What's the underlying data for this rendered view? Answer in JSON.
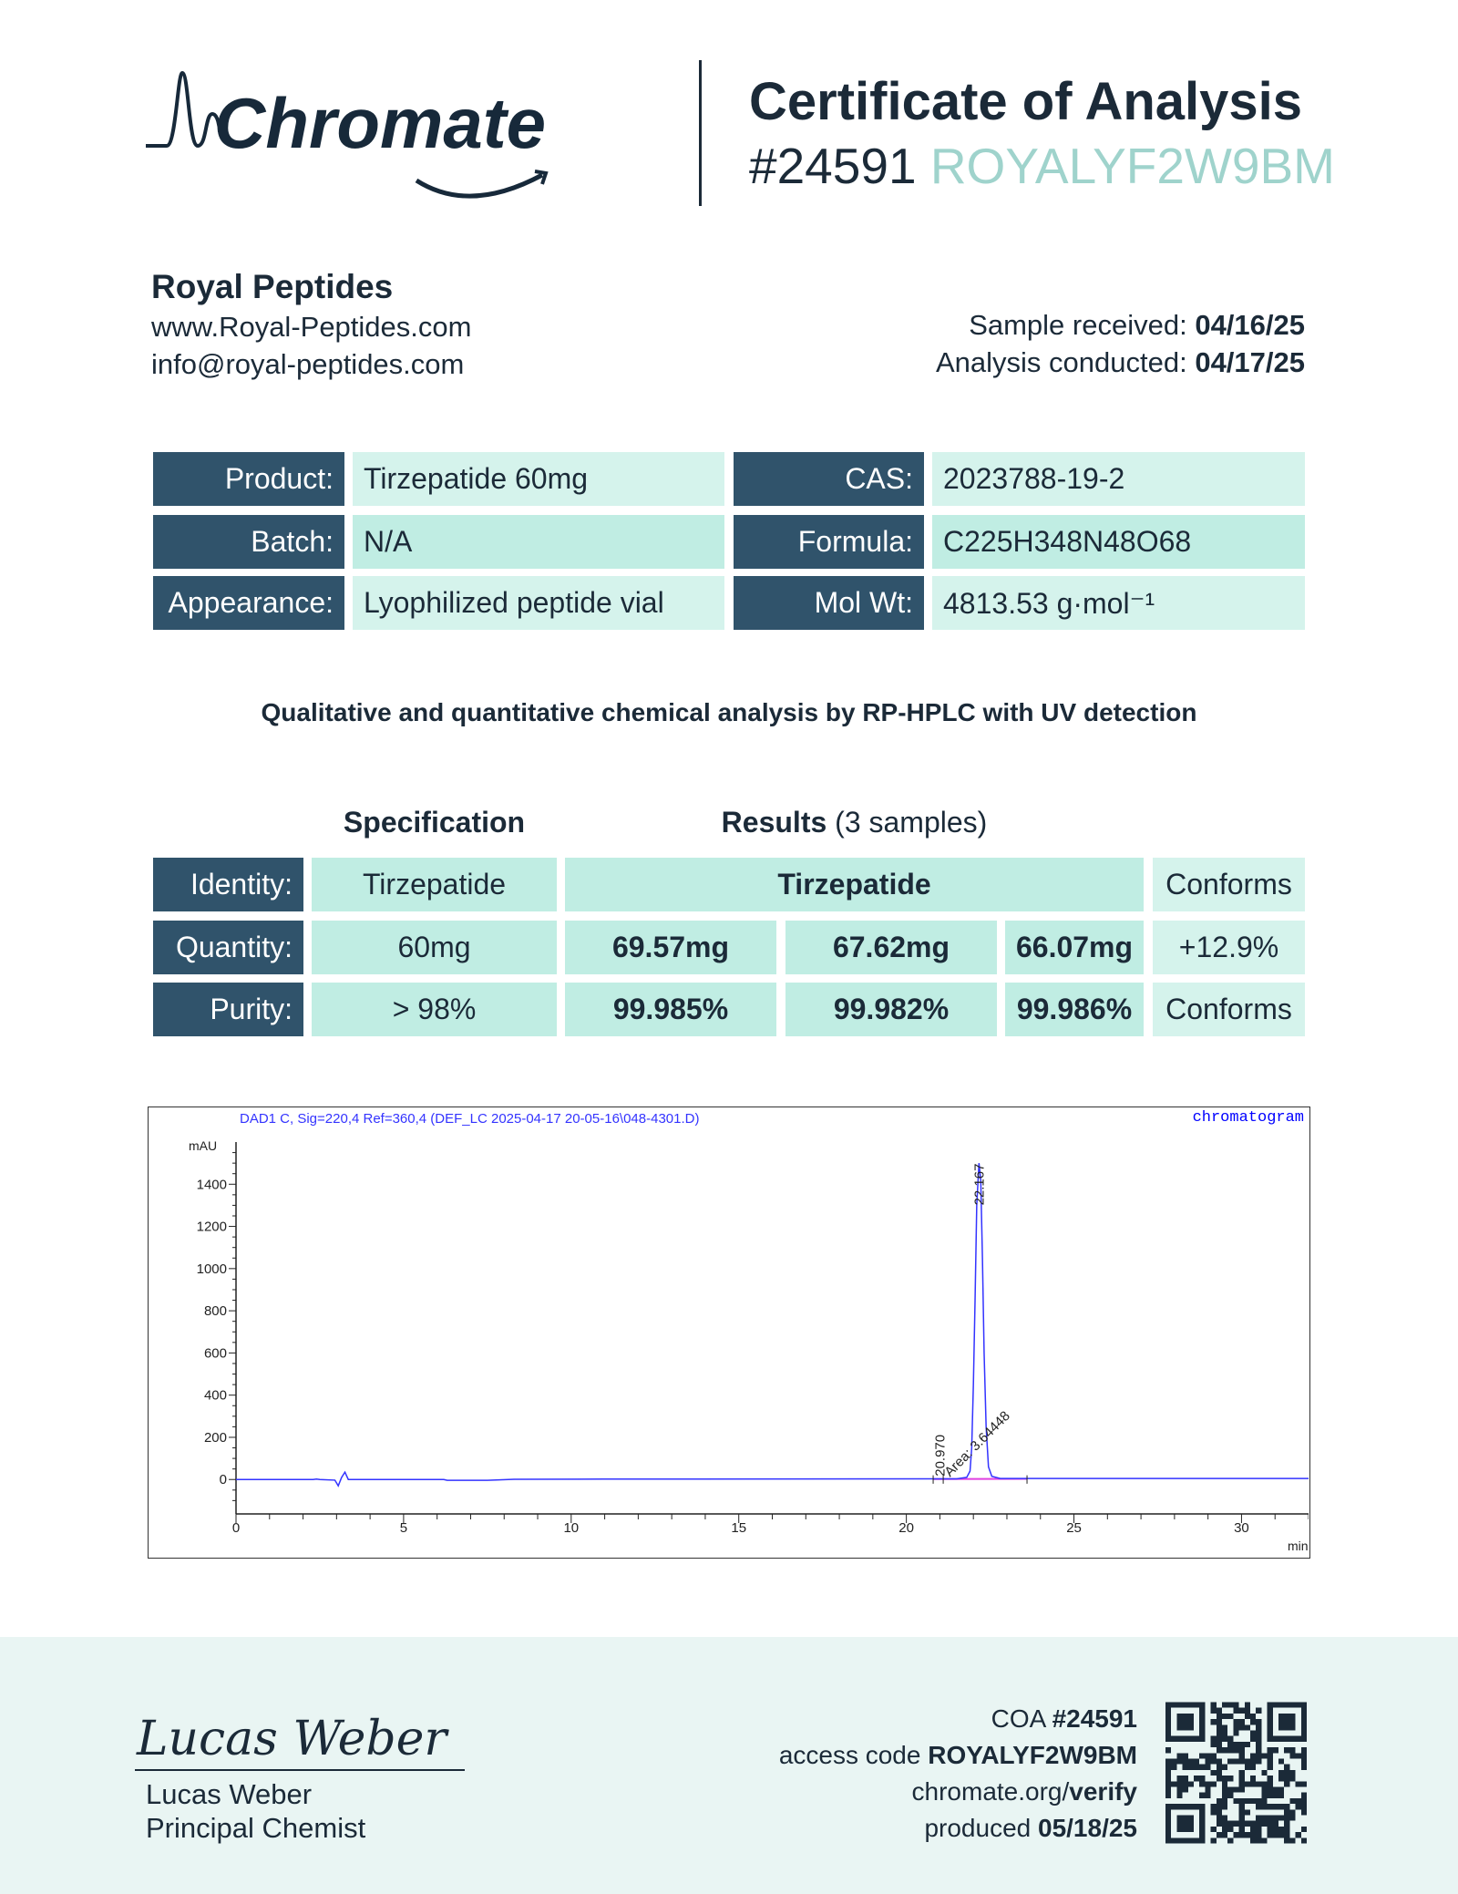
{
  "header": {
    "logo_text": "Chromate",
    "title": "Certificate of Analysis",
    "coa_number": "#24591",
    "access_code": "ROYALYF2W9BM"
  },
  "client": {
    "name": "Royal Peptides",
    "website": "www.Royal-Peptides.com",
    "email": "info@royal-peptides.com"
  },
  "dates": {
    "received_label": "Sample received:",
    "received": "04/16/25",
    "conducted_label": "Analysis conducted:",
    "conducted": "04/17/25"
  },
  "product_table": [
    {
      "label": "Product:",
      "value": "Tirzepatide 60mg",
      "label2": "CAS:",
      "value2": "2023788-19-2"
    },
    {
      "label": "Batch:",
      "value": "N/A",
      "label2": "Formula:",
      "value2": "C225H348N48O68"
    },
    {
      "label": "Appearance:",
      "value": "Lyophilized peptide vial",
      "label2": "Mol Wt:",
      "value2": "4813.53 g·mol⁻¹"
    }
  ],
  "method": "Qualitative and quantitative chemical analysis by RP-HPLC with UV detection",
  "results": {
    "spec_header": "Specification",
    "results_header": "Results",
    "samples_note": "(3 samples)",
    "identity": {
      "label": "Identity:",
      "spec": "Tirzepatide",
      "result": "Tirzepatide",
      "verdict": "Conforms"
    },
    "quantity": {
      "label": "Quantity:",
      "spec": "60mg",
      "values": [
        "69.57mg",
        "67.62mg",
        "66.07mg"
      ],
      "verdict": "+12.9%"
    },
    "purity": {
      "label": "Purity:",
      "spec": "> 98%",
      "values": [
        "99.985%",
        "99.982%",
        "99.986%"
      ],
      "verdict": "Conforms"
    }
  },
  "chart_data": {
    "type": "line",
    "title": "DAD1 C, Sig=220,4 Ref=360,4 (DEF_LC 2025-04-17 20-05-16\\048-4301.D)",
    "legend": "chromatogram",
    "legend_position": "top-right",
    "xlabel": "min",
    "ylabel": "mAU",
    "xlim": [
      0,
      32
    ],
    "ylim": [
      -120,
      1600
    ],
    "xticks": [
      0,
      5,
      10,
      15,
      20,
      25,
      30
    ],
    "yticks": [
      0,
      200,
      400,
      600,
      800,
      1000,
      1200,
      1400
    ],
    "grid": false,
    "line_color": "#3333ff",
    "baseline_color": "#e040e0",
    "annotations": [
      "22.167",
      "20.970",
      "Area: 3.64448"
    ],
    "series": [
      {
        "points": [
          [
            0,
            0
          ],
          [
            2.3,
            0
          ],
          [
            2.4,
            2
          ],
          [
            2.5,
            0
          ],
          [
            2.95,
            -3
          ],
          [
            3.05,
            -30
          ],
          [
            3.15,
            10
          ],
          [
            3.25,
            35
          ],
          [
            3.35,
            0
          ],
          [
            6.2,
            0
          ],
          [
            6.3,
            -4
          ],
          [
            7.5,
            -4
          ],
          [
            8.3,
            1
          ],
          [
            11,
            2
          ],
          [
            21.5,
            3
          ],
          [
            21.8,
            10
          ],
          [
            21.9,
            40
          ],
          [
            21.95,
            150
          ],
          [
            22.0,
            450
          ],
          [
            22.05,
            850
          ],
          [
            22.1,
            1300
          ],
          [
            22.167,
            1500
          ],
          [
            22.22,
            1420
          ],
          [
            22.27,
            1050
          ],
          [
            22.32,
            600
          ],
          [
            22.38,
            250
          ],
          [
            22.45,
            60
          ],
          [
            22.55,
            15
          ],
          [
            22.8,
            5
          ],
          [
            32,
            5
          ]
        ]
      }
    ]
  },
  "signature": {
    "name": "Lucas Weber",
    "title": "Principal Chemist",
    "script": "Lucas Weber"
  },
  "footer": {
    "coa_label": "COA",
    "coa": "#24591",
    "access_label": "access code",
    "access": "ROYALYF2W9BM",
    "verify_domain": "chromate.org/",
    "verify_path": "verify",
    "produced_label": "produced",
    "produced": "05/18/25"
  }
}
